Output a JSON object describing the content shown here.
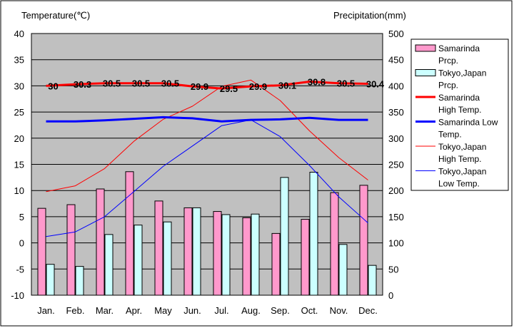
{
  "chart_data": {
    "type": "bar",
    "y_left_title": "Temperature(℃)",
    "y_right_title": "Precipitation(mm)",
    "categories": [
      "Jan.",
      "Feb.",
      "Mar.",
      "Apr.",
      "May",
      "Jun.",
      "Jul.",
      "Aug.",
      "Sep.",
      "Oct.",
      "Nov.",
      "Dec."
    ],
    "y_left_ticks": [
      "40",
      "35",
      "30",
      "25",
      "20",
      "15",
      "10",
      "5",
      "0",
      "-5",
      "-10"
    ],
    "y_right_ticks": [
      "500",
      "450",
      "400",
      "350",
      "300",
      "250",
      "200",
      "150",
      "100",
      "50",
      "0"
    ],
    "ylim_left": [
      -10,
      40
    ],
    "ylim_right": [
      0,
      500
    ],
    "grid": true,
    "legend_position": "right",
    "bar_series": [
      {
        "name": "Samarinda Prcp.",
        "color": "#ff99cc",
        "axis": "right",
        "values": [
          166,
          173,
          203,
          236,
          180,
          167,
          160,
          148,
          118,
          145,
          196,
          210
        ]
      },
      {
        "name": "Tokyo,Japan Prcp.",
        "color": "#ccffff",
        "axis": "right",
        "values": [
          59,
          55,
          116,
          134,
          140,
          167,
          154,
          155,
          225,
          235,
          97,
          57
        ]
      }
    ],
    "line_series": [
      {
        "name": "Samarinda High Temp.",
        "color": "#ff0000",
        "width": 3,
        "axis": "left",
        "values": [
          30,
          30.3,
          30.5,
          30.5,
          30.5,
          29.9,
          29.5,
          29.9,
          30.1,
          30.8,
          30.5,
          30.4
        ],
        "labels": [
          "30",
          "30.3",
          "30.5",
          "30.5",
          "30.5",
          "29.9",
          "29.5",
          "29.9",
          "30.1",
          "30.8",
          "30.5",
          "30.4"
        ]
      },
      {
        "name": "Samarinda Low Temp.",
        "color": "#0000ff",
        "width": 3,
        "axis": "left",
        "values": [
          23.2,
          23.2,
          23.4,
          23.7,
          24,
          23.8,
          23.2,
          23.5,
          23.6,
          23.9,
          23.5,
          23.5
        ]
      },
      {
        "name": "Tokyo,Japan High Temp.",
        "color": "#ff0000",
        "width": 1,
        "axis": "left",
        "values": [
          9.8,
          10.9,
          14.2,
          19.4,
          23.6,
          26.1,
          29.9,
          31.1,
          27.2,
          21.4,
          16.3,
          12
        ]
      },
      {
        "name": "Tokyo,Japan Low Temp.",
        "color": "#0000ff",
        "width": 1,
        "axis": "left",
        "values": [
          1.2,
          2.1,
          5,
          9.8,
          14.6,
          18.5,
          22.4,
          23.5,
          20.3,
          14.8,
          8.8,
          3.8
        ]
      }
    ],
    "legend": [
      {
        "line1": "Samarinda",
        "line2": "Prcp.",
        "kind": "box",
        "color": "#ff99cc"
      },
      {
        "line1": "Tokyo,Japan",
        "line2": "Prcp.",
        "kind": "box",
        "color": "#ccffff"
      },
      {
        "line1": "Samarinda",
        "line2": "High Temp.",
        "kind": "line",
        "color": "#ff0000",
        "width": 3
      },
      {
        "line1": "Samarinda Low",
        "line2": "Temp.",
        "kind": "line",
        "color": "#0000ff",
        "width": 3
      },
      {
        "line1": "Tokyo,Japan",
        "line2": "High Temp.",
        "kind": "line",
        "color": "#ff0000",
        "width": 1
      },
      {
        "line1": "Tokyo,Japan",
        "line2": "Low Temp.",
        "kind": "line",
        "color": "#0000ff",
        "width": 1
      }
    ],
    "plot_background": "#c0c0c0"
  }
}
